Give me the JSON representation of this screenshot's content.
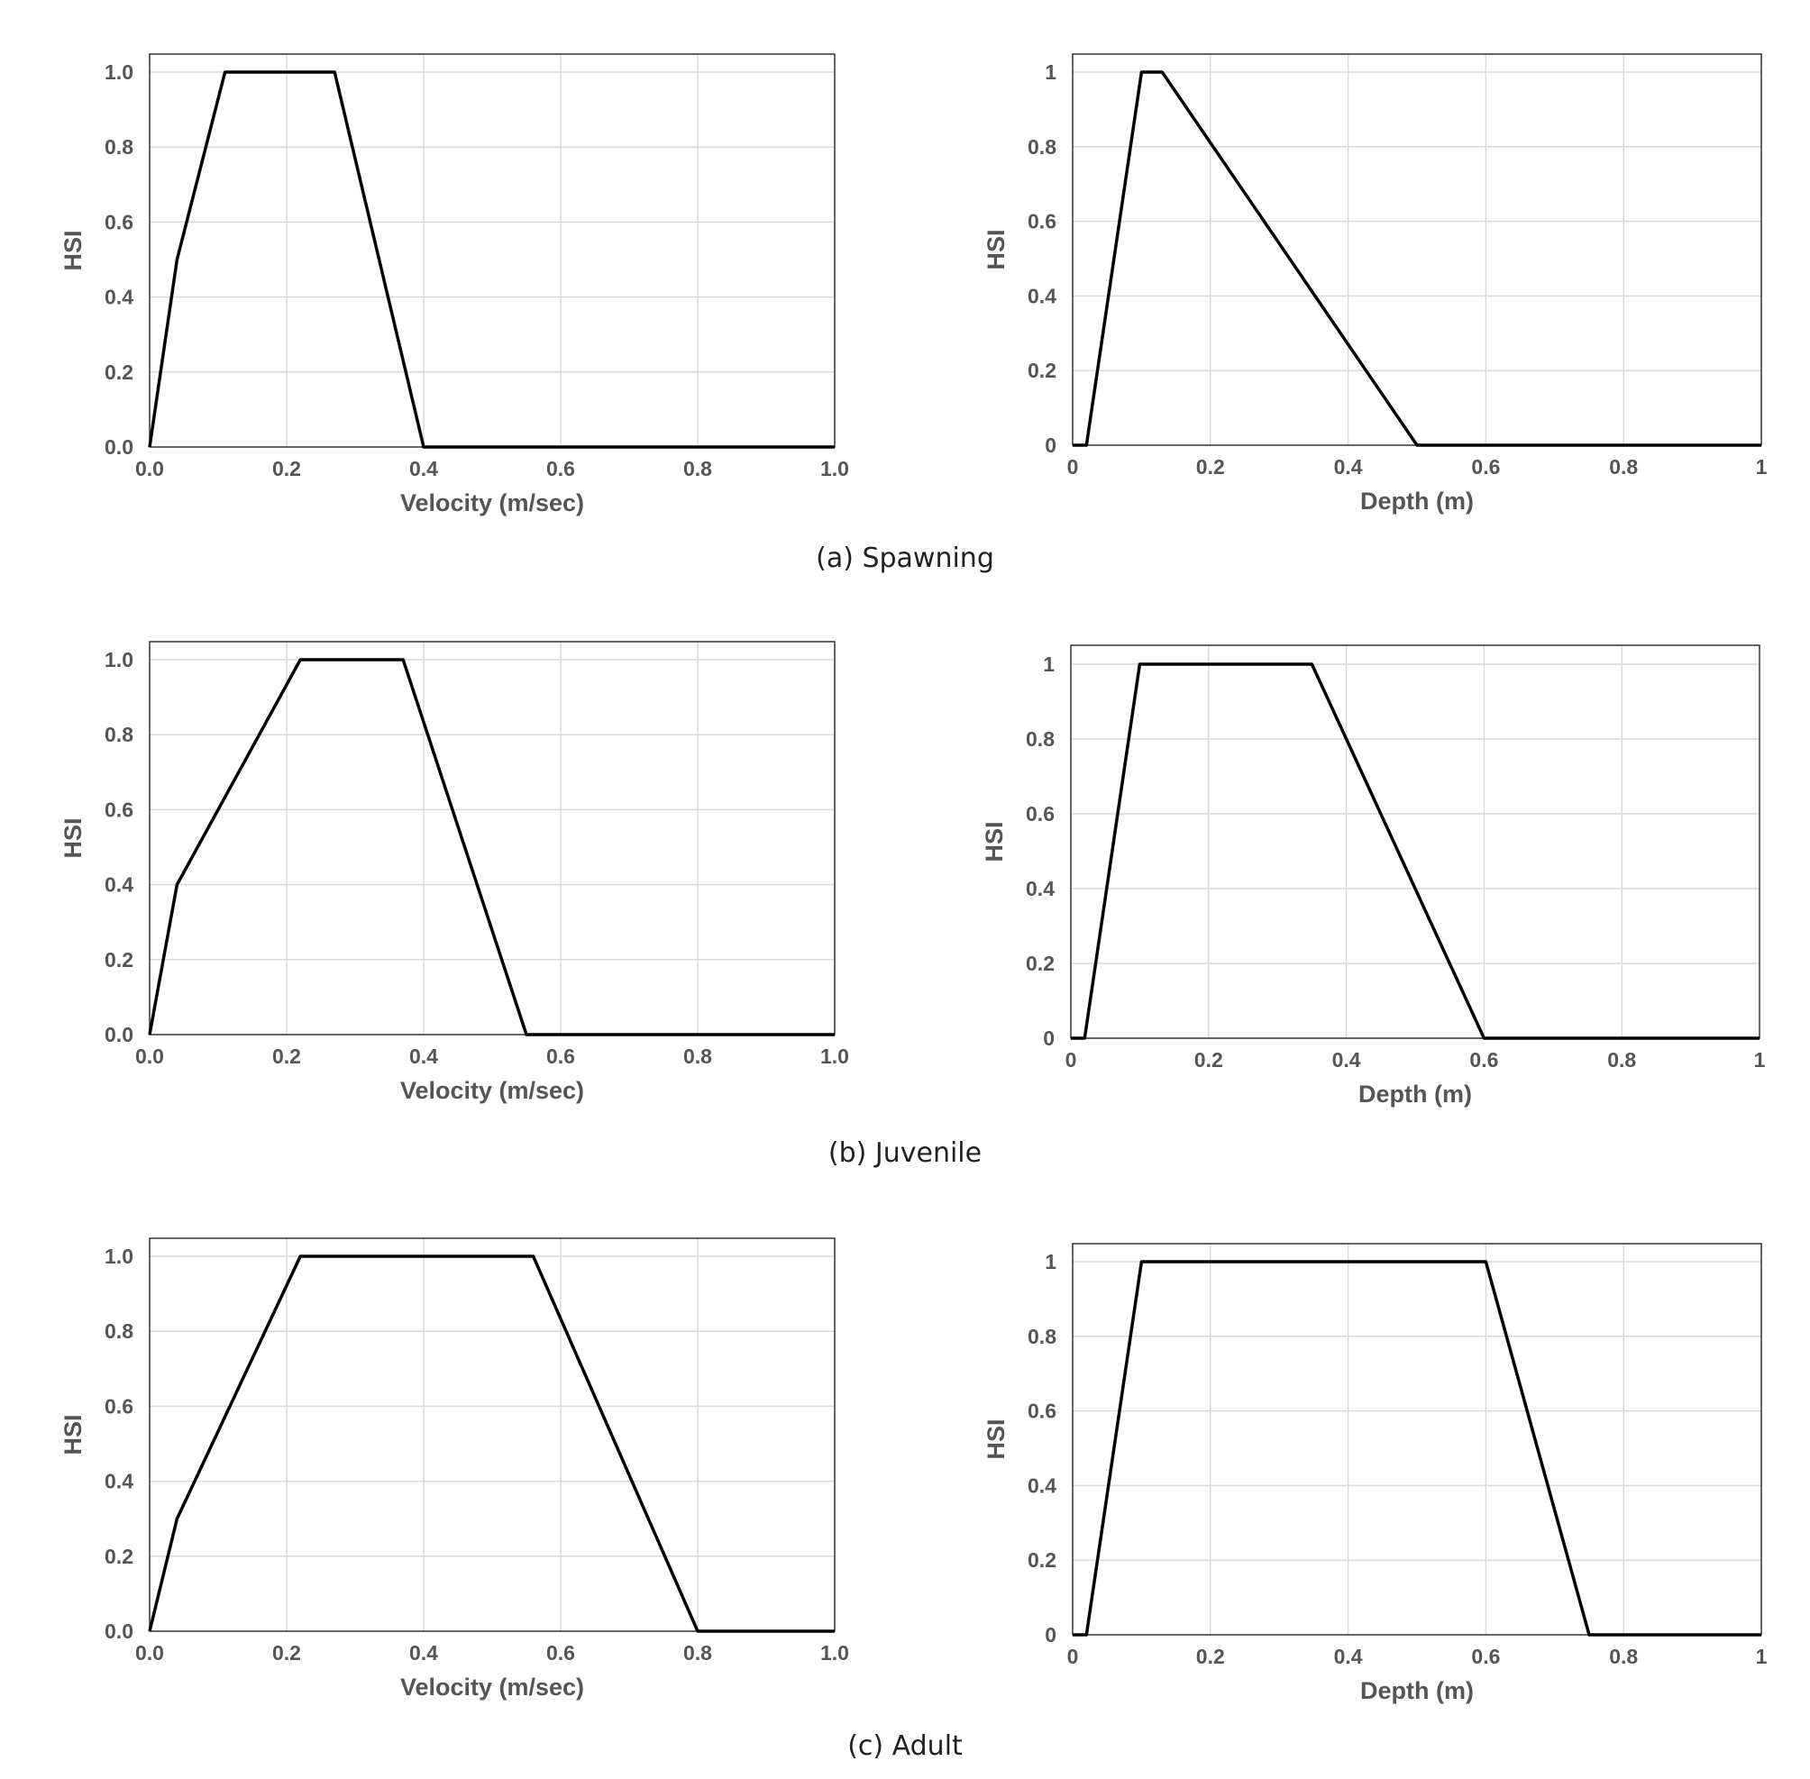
{
  "chart_data": [
    {
      "type": "line",
      "title": "",
      "xlabel": "Velocity (m/sec)",
      "ylabel": "HSI",
      "xlim": [
        0,
        1
      ],
      "ylim": [
        0,
        1
      ],
      "xticks": [
        "0.0",
        "0.2",
        "0.4",
        "0.6",
        "0.8",
        "1.0"
      ],
      "yticks": [
        "0.0",
        "0.2",
        "0.4",
        "0.6",
        "0.8",
        "1.0"
      ],
      "series": [
        {
          "name": "Spawning velocity",
          "x": [
            0,
            0.04,
            0.11,
            0.27,
            0.4,
            1.0
          ],
          "y": [
            0,
            0.5,
            1.0,
            1.0,
            0,
            0
          ]
        }
      ]
    },
    {
      "type": "line",
      "title": "",
      "xlabel": "Depth (m)",
      "ylabel": "HSI",
      "xlim": [
        0,
        1
      ],
      "ylim": [
        0,
        1
      ],
      "xticks": [
        "0",
        "0.2",
        "0.4",
        "0.6",
        "0.8",
        "1"
      ],
      "yticks": [
        "0",
        "0.2",
        "0.4",
        "0.6",
        "0.8",
        "1"
      ],
      "series": [
        {
          "name": "Spawning depth",
          "x": [
            0,
            0.02,
            0.1,
            0.13,
            0.5,
            1.0
          ],
          "y": [
            0,
            0,
            1.0,
            1.0,
            0,
            0
          ]
        }
      ]
    },
    {
      "type": "line",
      "title": "",
      "xlabel": "Velocity (m/sec)",
      "ylabel": "HSI",
      "xlim": [
        0,
        1
      ],
      "ylim": [
        0,
        1
      ],
      "xticks": [
        "0.0",
        "0.2",
        "0.4",
        "0.6",
        "0.8",
        "1.0"
      ],
      "yticks": [
        "0.0",
        "0.2",
        "0.4",
        "0.6",
        "0.8",
        "1.0"
      ],
      "series": [
        {
          "name": "Juvenile velocity",
          "x": [
            0,
            0.04,
            0.22,
            0.37,
            0.55,
            1.0
          ],
          "y": [
            0,
            0.4,
            1.0,
            1.0,
            0,
            0
          ]
        }
      ]
    },
    {
      "type": "line",
      "title": "",
      "xlabel": "Depth (m)",
      "ylabel": "HSI",
      "xlim": [
        0,
        1
      ],
      "ylim": [
        0,
        1
      ],
      "xticks": [
        "0",
        "0.2",
        "0.4",
        "0.6",
        "0.8",
        "1"
      ],
      "yticks": [
        "0",
        "0.2",
        "0.4",
        "0.6",
        "0.8",
        "1"
      ],
      "series": [
        {
          "name": "Juvenile depth",
          "x": [
            0,
            0.02,
            0.1,
            0.35,
            0.6,
            1.0
          ],
          "y": [
            0,
            0,
            1.0,
            1.0,
            0,
            0
          ]
        }
      ]
    },
    {
      "type": "line",
      "title": "",
      "xlabel": "Velocity (m/sec)",
      "ylabel": "HSI",
      "xlim": [
        0,
        1
      ],
      "ylim": [
        0,
        1
      ],
      "xticks": [
        "0.0",
        "0.2",
        "0.4",
        "0.6",
        "0.8",
        "1.0"
      ],
      "yticks": [
        "0.0",
        "0.2",
        "0.4",
        "0.6",
        "0.8",
        "1.0"
      ],
      "series": [
        {
          "name": "Adult velocity",
          "x": [
            0,
            0.04,
            0.22,
            0.56,
            0.8,
            1.0
          ],
          "y": [
            0,
            0.3,
            1.0,
            1.0,
            0,
            0
          ]
        }
      ]
    },
    {
      "type": "line",
      "title": "",
      "xlabel": "Depth (m)",
      "ylabel": "HSI",
      "xlim": [
        0,
        1
      ],
      "ylim": [
        0,
        1
      ],
      "xticks": [
        "0",
        "0.2",
        "0.4",
        "0.6",
        "0.8",
        "1"
      ],
      "yticks": [
        "0",
        "0.2",
        "0.4",
        "0.6",
        "0.8",
        "1"
      ],
      "series": [
        {
          "name": "Adult depth",
          "x": [
            0,
            0.02,
            0.1,
            0.6,
            0.75,
            1.0
          ],
          "y": [
            0,
            0,
            1.0,
            1.0,
            0,
            0
          ]
        }
      ]
    }
  ],
  "captions": {
    "spawning": "(a) Spawning",
    "juvenile": "(b) Juvenile",
    "adult": "(c) Adult"
  }
}
